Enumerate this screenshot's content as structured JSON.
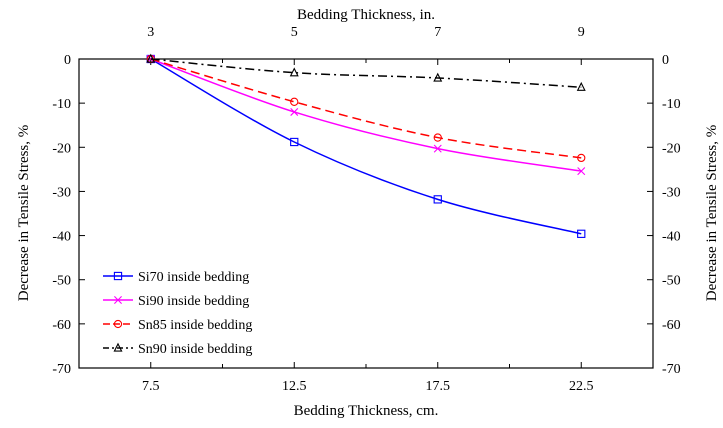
{
  "chart_data": {
    "type": "line",
    "xlabel": "Bedding Thickness, cm.",
    "xlabel_top": "Bedding Thickness, in.",
    "ylabel": "Decrease in Tensile Stress, %",
    "ylabel_right": "Decrease in Tensile Stress, %",
    "xlim": [
      5,
      25
    ],
    "ylim": [
      -70,
      0
    ],
    "x_ticks": [
      7.5,
      12.5,
      17.5,
      22.5
    ],
    "x_tick_labels": [
      "7.5",
      "12.5",
      "17.5",
      "22.5"
    ],
    "x_minor_ticks": [
      10,
      15,
      20
    ],
    "top_ticks": [
      7.5,
      12.5,
      17.5,
      22.5
    ],
    "top_tick_labels": [
      "3",
      "5",
      "7",
      "9"
    ],
    "y_ticks": [
      0,
      -10,
      -20,
      -30,
      -40,
      -50,
      -60,
      -70
    ],
    "y_tick_labels": [
      "0",
      "-10",
      "-20",
      "-30",
      "-40",
      "-50",
      "-60",
      "-70"
    ],
    "grid": false,
    "legend_position": "lower-left",
    "x": [
      7.5,
      12.5,
      17.5,
      22.5
    ],
    "series": [
      {
        "name": "Si70 inside bedding",
        "values": [
          0,
          -18.8,
          -31.8,
          -39.6
        ],
        "color": "#0000ff",
        "dash": "solid",
        "marker": "square"
      },
      {
        "name": "Si90 inside bedding",
        "values": [
          0,
          -12.0,
          -20.3,
          -25.4
        ],
        "color": "#ff00ff",
        "dash": "solid",
        "marker": "x"
      },
      {
        "name": "Sn85 inside bedding",
        "values": [
          0,
          -9.7,
          -17.8,
          -22.4
        ],
        "color": "#ff0000",
        "dash": "dashed",
        "marker": "circle"
      },
      {
        "name": "Sn90 inside bedding",
        "values": [
          0,
          -3.1,
          -4.3,
          -6.4
        ],
        "color": "#000000",
        "dash": "dashdot",
        "marker": "triangle"
      }
    ]
  }
}
